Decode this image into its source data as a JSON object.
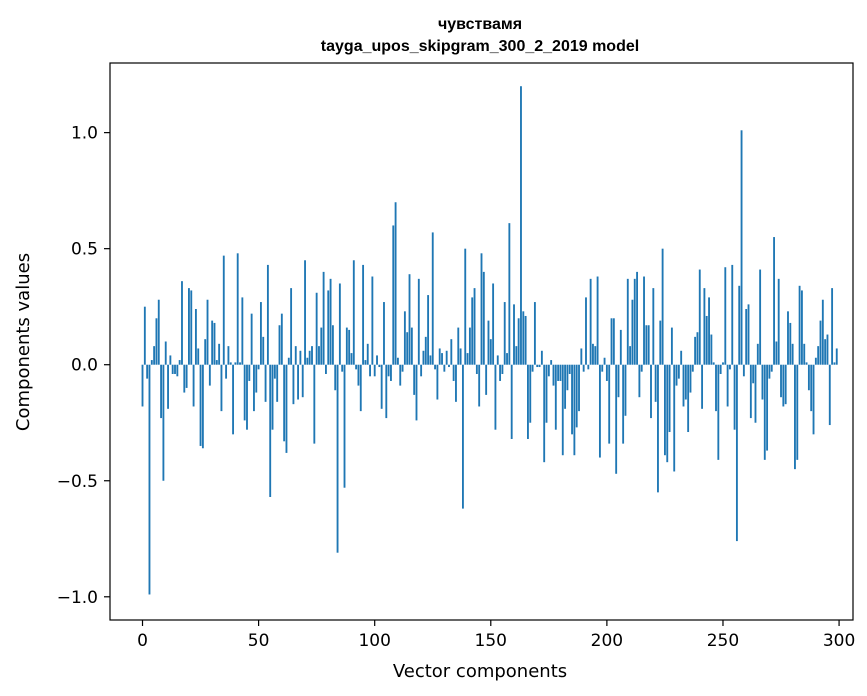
{
  "chart_data": {
    "type": "bar",
    "title": "чувствамя",
    "subtitle": "tayga_upos_skipgram_300_2_2019 model",
    "xlabel": "Vector components",
    "ylabel": "Components values",
    "xlim": [
      -14,
      306
    ],
    "ylim": [
      -1.1,
      1.3
    ],
    "xticks": [
      0,
      50,
      100,
      150,
      200,
      250,
      300
    ],
    "xtick_labels": [
      "0",
      "50",
      "100",
      "150",
      "200",
      "250",
      "300"
    ],
    "yticks": [
      -1.0,
      -0.5,
      0.0,
      0.5,
      1.0
    ],
    "ytick_labels": [
      "−1.0",
      "−0.5",
      "0.0",
      "0.5",
      "1.0"
    ],
    "grid": false,
    "bar_color": "#1f77b4",
    "x": [
      0,
      1,
      2,
      3,
      4,
      5,
      6,
      7,
      8,
      9,
      10,
      11,
      12,
      13,
      14,
      15,
      16,
      17,
      18,
      19,
      20,
      21,
      22,
      23,
      24,
      25,
      26,
      27,
      28,
      29,
      30,
      31,
      32,
      33,
      34,
      35,
      36,
      37,
      38,
      39,
      40,
      41,
      42,
      43,
      44,
      45,
      46,
      47,
      48,
      49,
      50,
      51,
      52,
      53,
      54,
      55,
      56,
      57,
      58,
      59,
      60,
      61,
      62,
      63,
      64,
      65,
      66,
      67,
      68,
      69,
      70,
      71,
      72,
      73,
      74,
      75,
      76,
      77,
      78,
      79,
      80,
      81,
      82,
      83,
      84,
      85,
      86,
      87,
      88,
      89,
      90,
      91,
      92,
      93,
      94,
      95,
      96,
      97,
      98,
      99,
      100,
      101,
      102,
      103,
      104,
      105,
      106,
      107,
      108,
      109,
      110,
      111,
      112,
      113,
      114,
      115,
      116,
      117,
      118,
      119,
      120,
      121,
      122,
      123,
      124,
      125,
      126,
      127,
      128,
      129,
      130,
      131,
      132,
      133,
      134,
      135,
      136,
      137,
      138,
      139,
      140,
      141,
      142,
      143,
      144,
      145,
      146,
      147,
      148,
      149,
      150,
      151,
      152,
      153,
      154,
      155,
      156,
      157,
      158,
      159,
      160,
      161,
      162,
      163,
      164,
      165,
      166,
      167,
      168,
      169,
      170,
      171,
      172,
      173,
      174,
      175,
      176,
      177,
      178,
      179,
      180,
      181,
      182,
      183,
      184,
      185,
      186,
      187,
      188,
      189,
      190,
      191,
      192,
      193,
      194,
      195,
      196,
      197,
      198,
      199,
      200,
      201,
      202,
      203,
      204,
      205,
      206,
      207,
      208,
      209,
      210,
      211,
      212,
      213,
      214,
      215,
      216,
      217,
      218,
      219,
      220,
      221,
      222,
      223,
      224,
      225,
      226,
      227,
      228,
      229,
      230,
      231,
      232,
      233,
      234,
      235,
      236,
      237,
      238,
      239,
      240,
      241,
      242,
      243,
      244,
      245,
      246,
      247,
      248,
      249,
      250,
      251,
      252,
      253,
      254,
      255,
      256,
      257,
      258,
      259,
      260,
      261,
      262,
      263,
      264,
      265,
      266,
      267,
      268,
      269,
      270,
      271,
      272,
      273,
      274,
      275,
      276,
      277,
      278,
      279,
      280,
      281,
      282,
      283,
      284,
      285,
      286,
      287,
      288,
      289,
      290,
      291,
      292,
      293,
      294,
      295,
      296,
      297,
      298,
      299
    ],
    "values": [
      -0.18,
      0.25,
      -0.06,
      -0.99,
      0.02,
      0.08,
      0.2,
      0.28,
      -0.23,
      -0.5,
      0.1,
      -0.19,
      0.04,
      -0.04,
      -0.04,
      -0.05,
      0.02,
      0.36,
      -0.12,
      -0.1,
      0.33,
      0.32,
      -0.18,
      0.24,
      0.07,
      -0.35,
      -0.36,
      0.11,
      0.28,
      -0.09,
      0.19,
      0.18,
      0.02,
      0.09,
      -0.2,
      0.47,
      -0.06,
      0.08,
      0.01,
      -0.3,
      0.01,
      0.48,
      0.01,
      0.29,
      -0.24,
      -0.28,
      -0.07,
      0.22,
      -0.2,
      -0.12,
      -0.02,
      0.27,
      0.12,
      -0.16,
      0.43,
      -0.57,
      -0.28,
      -0.06,
      -0.16,
      0.17,
      0.22,
      -0.33,
      -0.38,
      0.03,
      0.33,
      -0.17,
      0.08,
      -0.15,
      0.06,
      -0.14,
      0.45,
      0.03,
      0.06,
      0.08,
      -0.34,
      0.31,
      0.08,
      0.16,
      0.4,
      -0.04,
      0.32,
      0.37,
      0.17,
      -0.11,
      -0.81,
      0.35,
      -0.03,
      -0.53,
      0.16,
      0.15,
      0.05,
      0.45,
      -0.02,
      -0.09,
      -0.2,
      0.43,
      0.02,
      0.09,
      -0.05,
      0.38,
      -0.05,
      0.04,
      -0.01,
      -0.19,
      0.27,
      -0.23,
      -0.05,
      -0.07,
      0.6,
      0.7,
      0.03,
      -0.09,
      -0.03,
      0.23,
      0.14,
      0.39,
      0.16,
      -0.13,
      -0.24,
      0.37,
      -0.05,
      0.06,
      0.12,
      0.3,
      0.04,
      0.57,
      -0.02,
      -0.15,
      0.07,
      0.05,
      -0.03,
      0.06,
      -0.01,
      0.11,
      -0.07,
      -0.16,
      0.16,
      0.07,
      -0.62,
      0.5,
      0.05,
      0.16,
      0.29,
      0.33,
      -0.04,
      -0.18,
      0.48,
      0.4,
      -0.13,
      0.19,
      0.11,
      0.35,
      -0.28,
      0.04,
      -0.07,
      -0.04,
      0.27,
      0.05,
      0.61,
      -0.32,
      0.26,
      0.08,
      0.2,
      1.2,
      0.23,
      0.21,
      -0.32,
      -0.25,
      -0.03,
      0.27,
      -0.01,
      -0.01,
      0.06,
      -0.42,
      -0.25,
      -0.05,
      0.02,
      -0.09,
      -0.28,
      -0.07,
      -0.07,
      -0.39,
      -0.19,
      -0.11,
      -0.04,
      -0.3,
      -0.39,
      -0.27,
      -0.2,
      0.07,
      -0.03,
      0.29,
      -0.02,
      0.37,
      0.09,
      0.08,
      0.38,
      -0.4,
      -0.03,
      0.03,
      -0.07,
      -0.34,
      0.2,
      0.2,
      -0.47,
      -0.14,
      0.15,
      -0.34,
      -0.22,
      0.37,
      0.08,
      0.28,
      0.37,
      0.4,
      -0.14,
      -0.03,
      0.38,
      0.17,
      0.17,
      -0.23,
      0.33,
      -0.16,
      -0.55,
      0.19,
      0.5,
      -0.39,
      -0.42,
      -0.29,
      0.16,
      -0.46,
      -0.09,
      -0.06,
      0.06,
      -0.18,
      -0.15,
      -0.29,
      -0.12,
      -0.03,
      0.12,
      0.14,
      0.41,
      -0.19,
      0.33,
      0.21,
      0.29,
      0.13,
      0.01,
      -0.2,
      -0.41,
      -0.04,
      0.01,
      0.42,
      -0.18,
      -0.02,
      0.43,
      -0.28,
      -0.76,
      0.34,
      1.01,
      -0.05,
      0.24,
      0.26,
      -0.23,
      -0.08,
      -0.25,
      0.09,
      0.41,
      -0.15,
      -0.41,
      -0.37,
      -0.06,
      -0.03,
      0.55,
      0.1,
      0.37,
      -0.14,
      -0.18,
      -0.17,
      0.23,
      0.18,
      0.09,
      -0.45,
      -0.41,
      0.34,
      0.32,
      0.09,
      0.01,
      -0.11,
      -0.2,
      -0.3,
      0.03,
      0.08,
      0.19,
      0.28,
      0.11,
      0.13,
      -0.26,
      0.33,
      0.01,
      0.07
    ]
  }
}
